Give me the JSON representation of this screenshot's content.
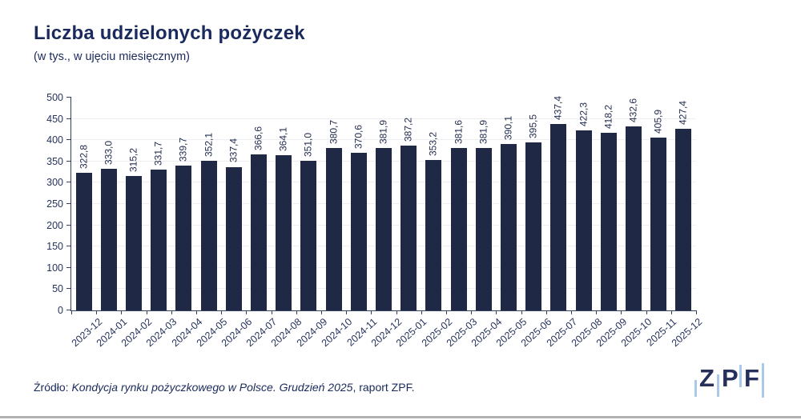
{
  "page": {
    "title": "Liczba udzielonych pożyczek",
    "subtitle": "(w tys., w ujęciu miesięcznym)",
    "source": {
      "prefix": "Źródło: ",
      "italic": "Kondycja rynku pożyczkowego w Polsce. Grudzień 2025",
      "suffix": ", raport ZPF."
    },
    "logo": {
      "letters": [
        "Z",
        "P",
        "F"
      ]
    }
  },
  "colors": {
    "navy_text": "#1a2a5c",
    "bar": "#1f2844",
    "axis": "#323f63",
    "grid": "#ededf2",
    "logo_blue": "#a9c8ea"
  },
  "chart_data": {
    "type": "bar",
    "title": "Liczba udzielonych pożyczek",
    "subtitle": "(w tys., w ujęciu miesięcznym)",
    "categories": [
      "2023-12",
      "2024-01",
      "2024-02",
      "2024-03",
      "2024-04",
      "2024-05",
      "2024-06",
      "2024-07",
      "2024-08",
      "2024-09",
      "2024-10",
      "2024-11",
      "2024-12",
      "2025-01",
      "2025-02",
      "2025-03",
      "2025-04",
      "2025-05",
      "2025-06",
      "2025-07",
      "2025-08",
      "2025-09",
      "2025-10",
      "2025-11",
      "2025-12"
    ],
    "values": [
      322.8,
      333.0,
      315.2,
      331.7,
      339.7,
      352.1,
      337.4,
      366.6,
      364.1,
      351.0,
      380.7,
      370.6,
      381.9,
      387.2,
      353.2,
      381.6,
      381.9,
      390.1,
      395.5,
      437.4,
      422.3,
      418.2,
      432.6,
      405.9,
      427.4
    ],
    "value_labels": [
      "322,8",
      "333,0",
      "315,2",
      "331,7",
      "339,7",
      "352,1",
      "337,4",
      "366,6",
      "364,1",
      "351,0",
      "380,7",
      "370,6",
      "381,9",
      "387,2",
      "353,2",
      "381,6",
      "381,9",
      "390,1",
      "395,5",
      "437,4",
      "422,3",
      "418,2",
      "432,6",
      "405,9",
      "427,4"
    ],
    "xlabel": "",
    "ylabel": "",
    "ylim": [
      0,
      500
    ],
    "ytick_step": 50,
    "grid": "horizontal",
    "legend": "none",
    "bar_color": "#1f2844"
  }
}
